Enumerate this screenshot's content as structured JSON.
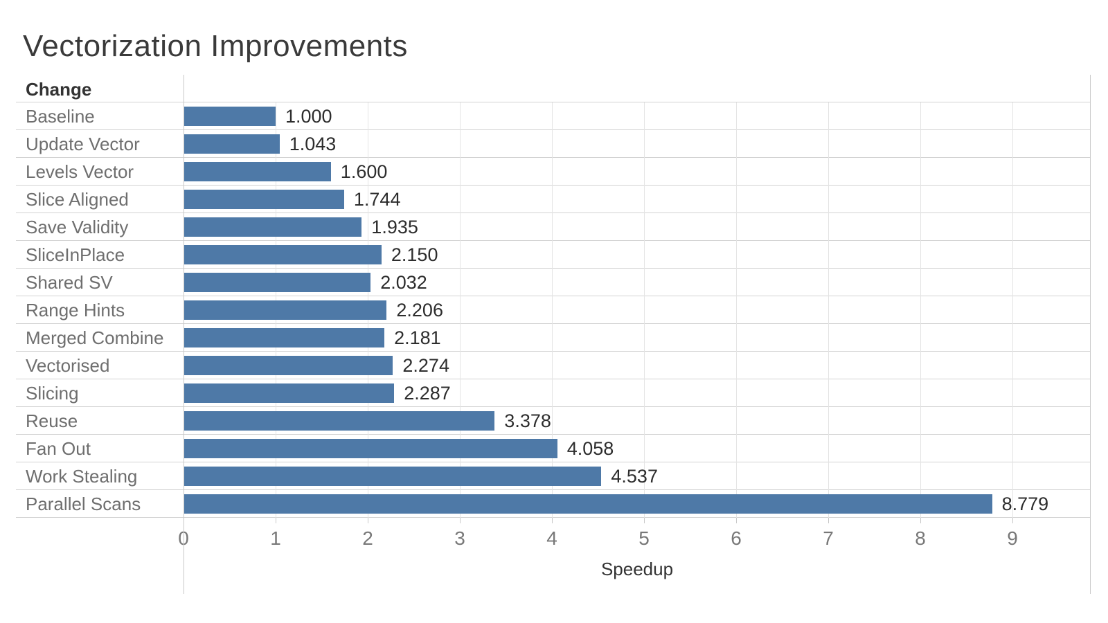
{
  "title": "Vectorization Improvements",
  "chart_data": {
    "type": "bar",
    "orientation": "horizontal",
    "title": "Vectorization Improvements",
    "row_header": "Change",
    "xlabel": "Speedup",
    "categories": [
      "Baseline",
      "Update Vector",
      "Levels Vector",
      "Slice Aligned",
      "Save Validity",
      "SliceInPlace",
      "Shared SV",
      "Range Hints",
      "Merged Combine",
      "Vectorised",
      "Slicing",
      "Reuse",
      "Fan Out",
      "Work Stealing",
      "Parallel Scans"
    ],
    "values": [
      1.0,
      1.043,
      1.6,
      1.744,
      1.935,
      2.15,
      2.032,
      2.206,
      2.181,
      2.274,
      2.287,
      3.378,
      4.058,
      4.537,
      8.779
    ],
    "value_labels": [
      "1.000",
      "1.043",
      "1.600",
      "1.744",
      "1.935",
      "2.150",
      "2.032",
      "2.206",
      "2.181",
      "2.274",
      "2.287",
      "3.378",
      "4.058",
      "4.537",
      "8.779"
    ],
    "x_ticks": [
      0,
      1,
      2,
      3,
      4,
      5,
      6,
      7,
      8,
      9
    ],
    "xlim": [
      0,
      9.85
    ],
    "grid": true,
    "legend": false,
    "bar_color": "#4e79a7",
    "colors": {
      "title_text": "#3a3a3a",
      "category_text": "#6e6e6e",
      "value_text": "#2d2d2d",
      "tick_text": "#787878",
      "axis_title_text": "#333333",
      "row_separator": "#d2d2d2",
      "gridline": "#e4e4e4",
      "axis_frame": "#c8c8c8"
    }
  }
}
